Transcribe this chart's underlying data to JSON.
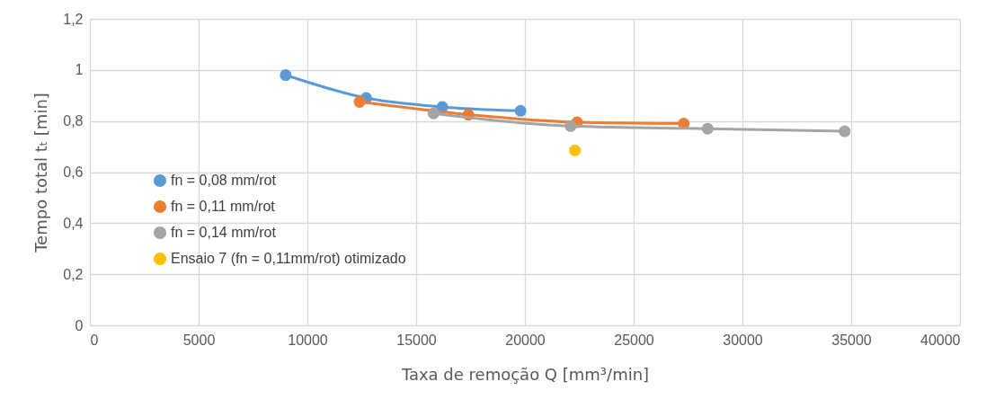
{
  "chart_data": {
    "type": "line",
    "xlabel": "Taxa de remoção Q [mm³/min]",
    "ylabel": "Tempo total tₜ [min]",
    "xlim": [
      0,
      40000
    ],
    "xticks": [
      0,
      5000,
      10000,
      15000,
      20000,
      25000,
      30000,
      35000,
      40000
    ],
    "ylim": [
      0,
      1.2
    ],
    "yticks": [
      0,
      {
        "value": 0.2,
        "label": "0,2"
      },
      {
        "value": 0.4,
        "label": "0,4"
      },
      {
        "value": 0.6,
        "label": "0,6"
      },
      {
        "value": 0.8,
        "label": "0,8"
      },
      1,
      {
        "value": 1.2,
        "label": "1,2"
      }
    ],
    "grid": true,
    "legend": "left",
    "marker": "circle",
    "series": [
      {
        "name": "fn = 0,08 mm/rot",
        "color": "#5b9bd5",
        "x": [
          9000,
          12700,
          16200,
          19800
        ],
        "values": [
          0.98,
          0.89,
          0.855,
          0.84
        ]
      },
      {
        "name": "fn = 0,11 mm/rot",
        "color": "#ed7d31",
        "x": [
          12400,
          17400,
          22400,
          27300
        ],
        "values": [
          0.875,
          0.825,
          0.795,
          0.79
        ]
      },
      {
        "name": "fn = 0,14 mm/rot",
        "color": "#a5a5a5",
        "x": [
          15800,
          22100,
          28400,
          34700
        ],
        "values": [
          0.83,
          0.78,
          0.77,
          0.76
        ]
      },
      {
        "name": "Ensaio 7 (fn = 0,11mm/rot) otimizado",
        "color": "#ffc000",
        "type": "scatter",
        "x": [
          22300
        ],
        "values": [
          0.685
        ]
      }
    ]
  }
}
